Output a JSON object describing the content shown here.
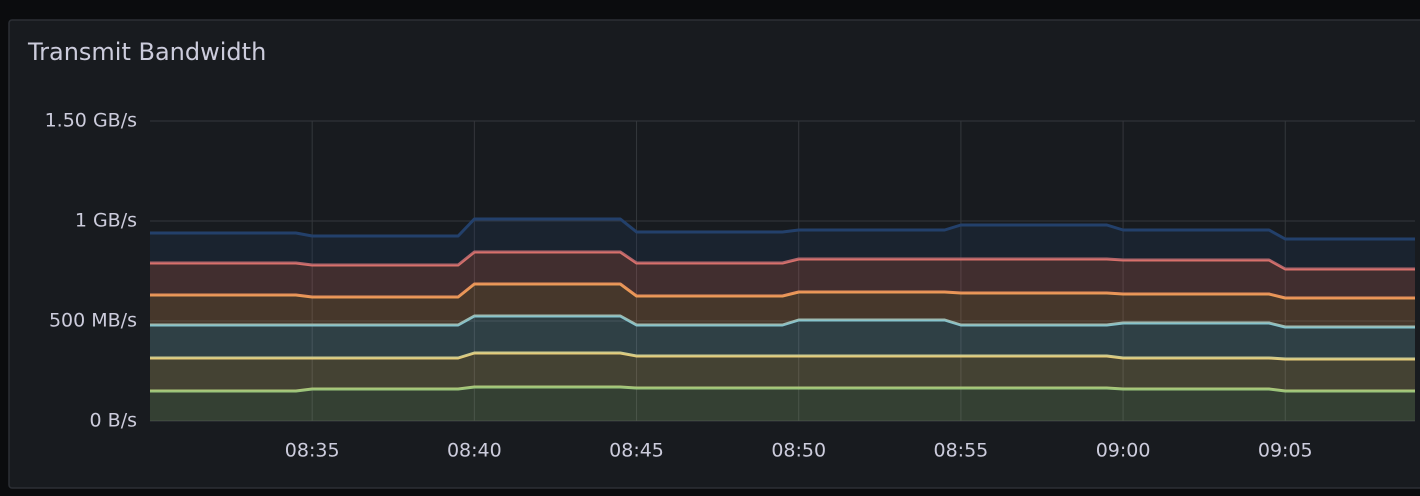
{
  "chart_data": {
    "type": "stacked-area",
    "title": "Transmit Bandwidth",
    "x": [
      510,
      514.5,
      515,
      519.5,
      520,
      524.5,
      525,
      529.5,
      530,
      534.5,
      535,
      539.5,
      540,
      544.5,
      545,
      549
    ],
    "xlim": [
      510,
      549
    ],
    "xticks": [
      {
        "value": 515,
        "label": "08:35"
      },
      {
        "value": 520,
        "label": "08:40"
      },
      {
        "value": 525,
        "label": "08:45"
      },
      {
        "value": 530,
        "label": "08:50"
      },
      {
        "value": 535,
        "label": "08:55"
      },
      {
        "value": 540,
        "label": "09:00"
      },
      {
        "value": 545,
        "label": "09:05"
      }
    ],
    "ylim": [
      0,
      1500
    ],
    "yticks": [
      {
        "value": 0,
        "label": "0 B/s"
      },
      {
        "value": 500,
        "label": "500 MB/s"
      },
      {
        "value": 1000,
        "label": "1 GB/s"
      },
      {
        "value": 1500,
        "label": "1.50 GB/s"
      }
    ],
    "grid": true,
    "series": [
      {
        "color": "#9ac47a",
        "values": [
          150,
          150,
          160,
          160,
          170,
          170,
          165,
          165,
          165,
          165,
          165,
          165,
          160,
          160,
          150,
          150
        ]
      },
      {
        "color": "#e3cb7a",
        "values": [
          165,
          165,
          155,
          155,
          170,
          170,
          160,
          160,
          160,
          160,
          160,
          160,
          155,
          155,
          160,
          160
        ]
      },
      {
        "color": "#86c3cc",
        "values": [
          165,
          165,
          165,
          165,
          185,
          185,
          155,
          155,
          180,
          180,
          155,
          155,
          175,
          175,
          160,
          160
        ]
      },
      {
        "color": "#eb9a57",
        "values": [
          150,
          150,
          140,
          140,
          160,
          160,
          145,
          145,
          140,
          140,
          160,
          160,
          145,
          145,
          145,
          145
        ]
      },
      {
        "color": "#d8706b",
        "values": [
          160,
          160,
          160,
          160,
          160,
          160,
          165,
          165,
          165,
          165,
          170,
          170,
          170,
          170,
          145,
          145
        ]
      },
      {
        "color": "#23406b",
        "values": [
          150,
          150,
          145,
          145,
          165,
          165,
          155,
          155,
          145,
          145,
          170,
          170,
          150,
          150,
          150,
          150
        ]
      }
    ]
  }
}
